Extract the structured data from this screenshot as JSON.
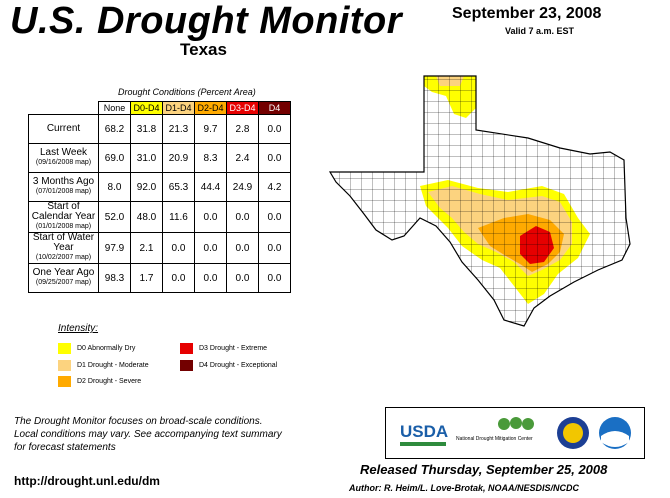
{
  "header": {
    "title": "U.S. Drought Monitor",
    "region": "Texas",
    "date": "September 23, 2008",
    "valid": "Valid 7 a.m. EST"
  },
  "table": {
    "caption": "Drought Conditions (Percent Area)",
    "columns": [
      "None",
      "D0-D4",
      "D1-D4",
      "D2-D4",
      "D3-D4",
      "D4"
    ],
    "column_colors": [
      "#ffffff",
      "#ffff00",
      "#fcd37f",
      "#ffaa00",
      "#e60000",
      "#730000"
    ],
    "rows": [
      {
        "label": "Current",
        "sub": "",
        "values": [
          "68.2",
          "31.8",
          "21.3",
          "9.7",
          "2.8",
          "0.0"
        ]
      },
      {
        "label": "Last Week",
        "sub": "(09/16/2008 map)",
        "values": [
          "69.0",
          "31.0",
          "20.9",
          "8.3",
          "2.4",
          "0.0"
        ]
      },
      {
        "label": "3 Months Ago",
        "sub": "(07/01/2008 map)",
        "values": [
          "8.0",
          "92.0",
          "65.3",
          "44.4",
          "24.9",
          "4.2"
        ]
      },
      {
        "label": "Start of Calendar Year",
        "sub": "(01/01/2008 map)",
        "values": [
          "52.0",
          "48.0",
          "11.6",
          "0.0",
          "0.0",
          "0.0"
        ]
      },
      {
        "label": "Start of Water Year",
        "sub": "(10/02/2007 map)",
        "values": [
          "97.9",
          "2.1",
          "0.0",
          "0.0",
          "0.0",
          "0.0"
        ]
      },
      {
        "label": "One Year Ago",
        "sub": "(09/25/2007 map)",
        "values": [
          "98.3",
          "1.7",
          "0.0",
          "0.0",
          "0.0",
          "0.0"
        ]
      }
    ]
  },
  "legend": {
    "heading": "Intensity:",
    "items": [
      {
        "label": "D0 Abnormally Dry",
        "color": "#ffff00"
      },
      {
        "label": "D1 Drought - Moderate",
        "color": "#fcd37f"
      },
      {
        "label": "D2 Drought - Severe",
        "color": "#ffaa00"
      },
      {
        "label": "D3 Drought - Extreme",
        "color": "#e60000"
      },
      {
        "label": "D4 Drought - Exceptional",
        "color": "#730000"
      }
    ]
  },
  "footer": {
    "note_1": "The Drought Monitor focuses on broad-scale conditions.",
    "note_2": "Local conditions may vary. See accompanying text summary",
    "note_3": "for forecast statements",
    "url": "http://drought.unl.edu/dm",
    "released": "Released Thursday, September 25, 2008",
    "author": "Author: R. Heim/L. Love-Brotak, NOAA/NESDIS/NCDC"
  },
  "logos": {
    "usda": "USDA",
    "ndmc": "National Drought Mitigation Center"
  }
}
